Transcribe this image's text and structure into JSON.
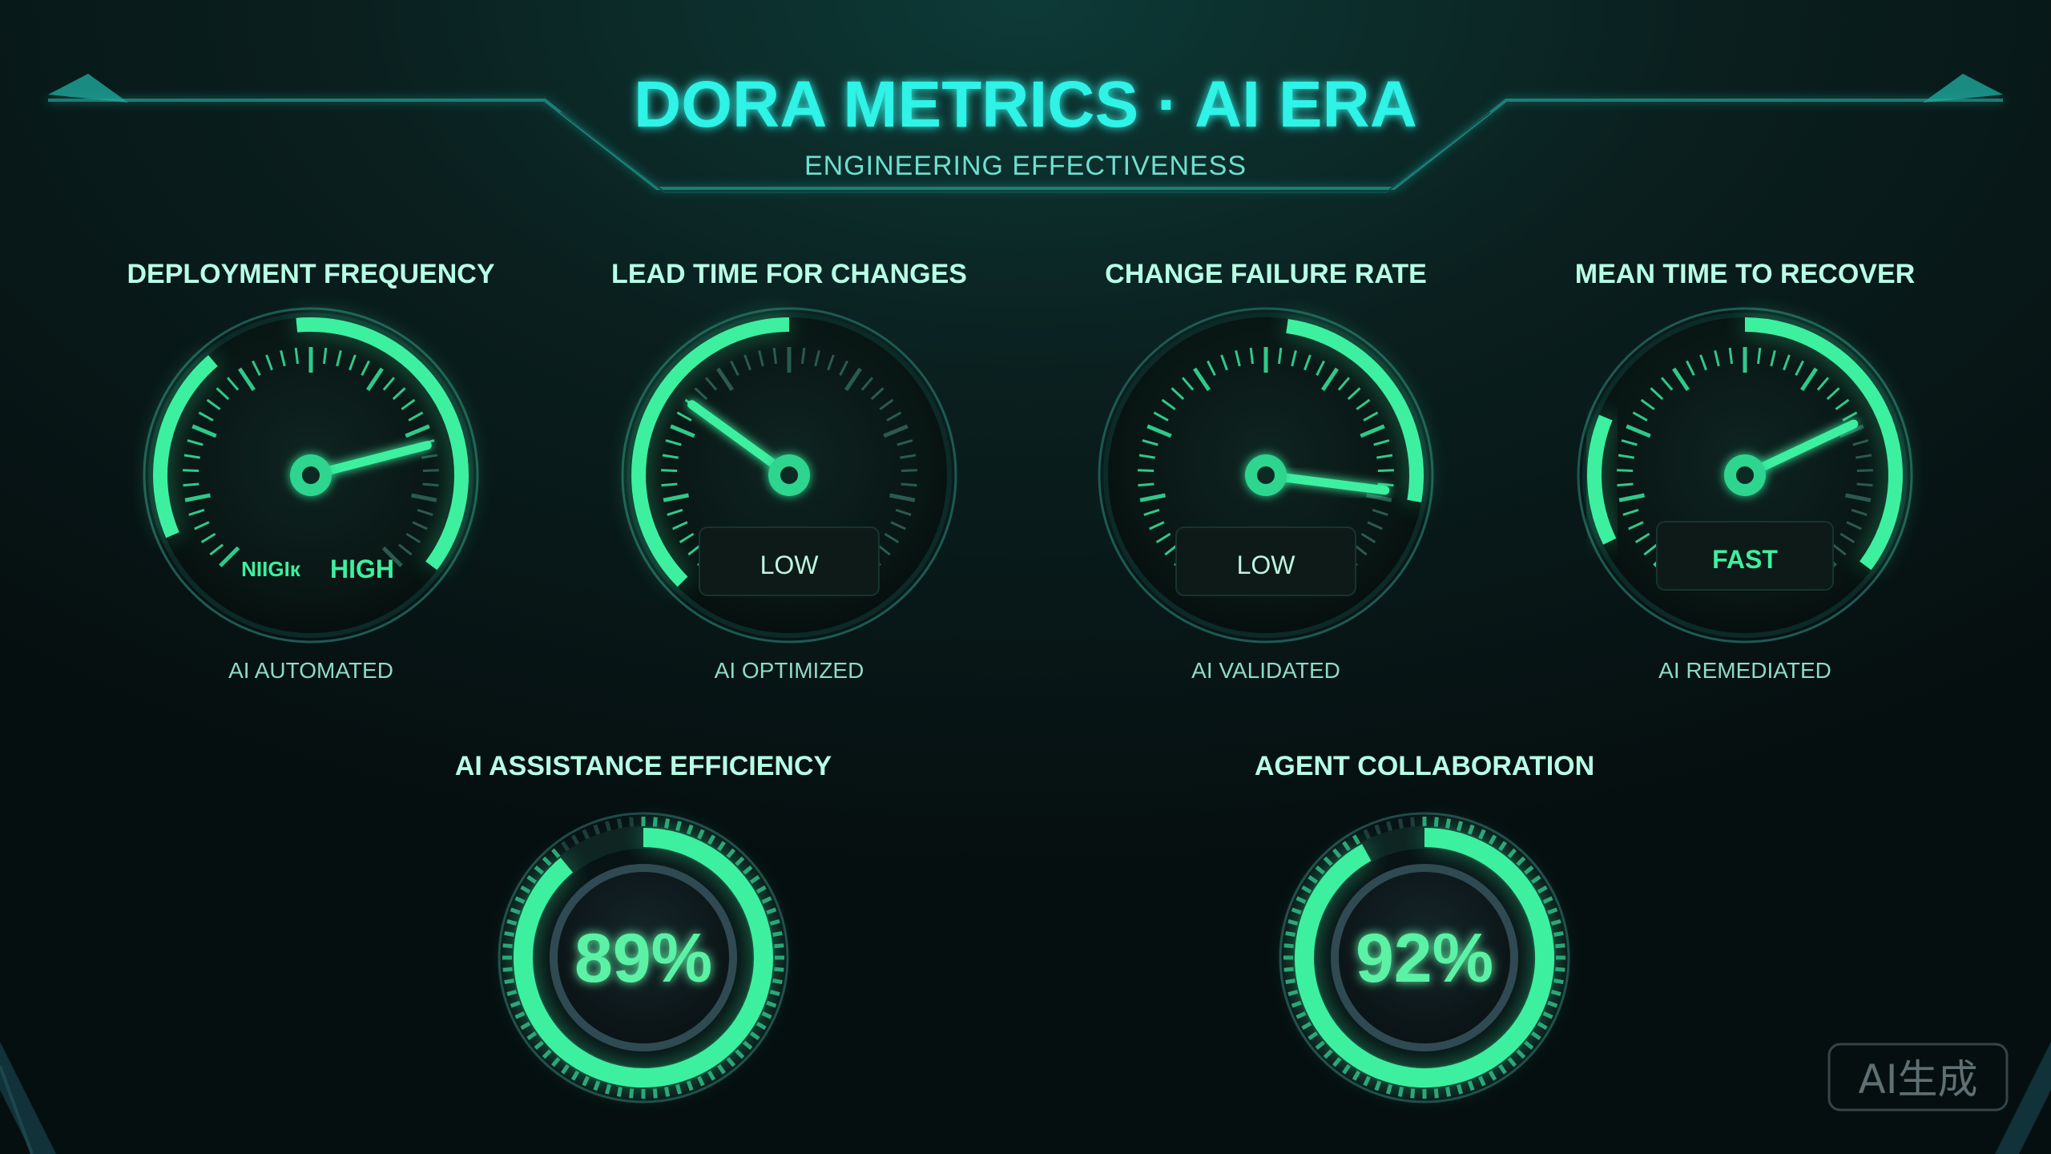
{
  "header": {
    "title": "DORA METRICS · AI ERA",
    "subtitle": "ENGINEERING EFFECTIVENESS"
  },
  "gauges": [
    {
      "title": "DEPLOYMENT FREQUENCY",
      "readout_left": "NIIGIк",
      "readout": "HIGH",
      "caption": "AI AUTOMATED",
      "level": 0.78,
      "arc": [
        0.08,
        0.35,
        0.48,
        0.97
      ]
    },
    {
      "title": "LEAD TIME FOR CHANGES",
      "readout": "LOW",
      "caption": "AI OPTIMIZED",
      "level": 0.3,
      "arc": [
        0.0,
        0.5
      ]
    },
    {
      "title": "CHANGE FAILURE RATE",
      "readout": "LOW",
      "caption": "AI VALIDATED",
      "level": 0.86,
      "arc": [
        0.53,
        0.87
      ]
    },
    {
      "title": "MEAN TIME TO RECOVER",
      "readout": "FAST",
      "caption": "AI REMEDIATED",
      "level": 0.74,
      "arc": [
        0.07,
        0.25,
        0.5,
        0.97
      ]
    }
  ],
  "rings": [
    {
      "title": "AI ASSISTANCE EFFICIENCY",
      "value": "89%",
      "fraction": 0.89
    },
    {
      "title": "AGENT COLLABORATION",
      "value": "92%",
      "fraction": 0.92
    }
  ],
  "watermark": "AI生成",
  "colors": {
    "background": "#071312",
    "accent": "#3df0a0",
    "title": "#2ff3e6",
    "label": "#b8ffe6",
    "text": "#9fe8cf"
  }
}
